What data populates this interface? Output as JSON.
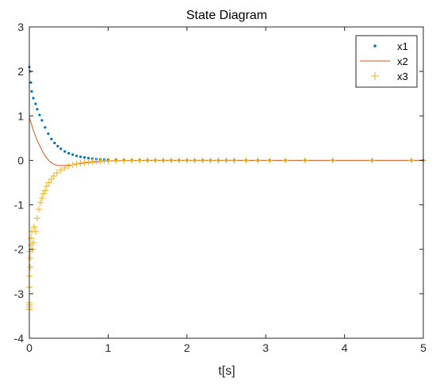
{
  "chart_data": {
    "type": "scatter",
    "title": "State Diagram",
    "xlabel": "t[s]",
    "ylabel": "",
    "xlim": [
      0,
      5
    ],
    "ylim": [
      -4,
      3
    ],
    "xticks": [
      0,
      1,
      2,
      3,
      4,
      5
    ],
    "yticks": [
      3,
      2,
      1,
      0,
      -1,
      -2,
      -3,
      -4
    ],
    "grid": false,
    "legend_position": "top-right",
    "series": [
      {
        "name": "x1",
        "marker": "dot",
        "color": "#0072BD",
        "x": [
          0,
          0.01,
          0.02,
          0.03,
          0.05,
          0.08,
          0.1,
          0.13,
          0.16,
          0.2,
          0.24,
          0.28,
          0.32,
          0.36,
          0.4,
          0.45,
          0.5,
          0.55,
          0.6,
          0.65,
          0.7,
          0.75,
          0.8,
          0.85,
          0.9,
          0.95,
          1.0,
          1.1,
          1.2,
          1.3,
          1.4,
          1.5,
          1.6,
          1.7,
          1.8,
          1.9,
          2.0,
          2.1,
          2.2,
          2.3,
          2.4,
          2.5,
          2.6,
          2.75,
          2.9,
          3.05,
          3.25,
          3.5,
          3.85,
          4.35,
          4.85,
          5.0
        ],
        "y": [
          2.1,
          2.0,
          1.75,
          1.55,
          1.4,
          1.27,
          1.15,
          1.02,
          0.9,
          0.74,
          0.6,
          0.48,
          0.39,
          0.32,
          0.26,
          0.2,
          0.16,
          0.13,
          0.1,
          0.08,
          0.065,
          0.05,
          0.04,
          0.03,
          0.025,
          0.02,
          0.015,
          0.01,
          0.006,
          0.004,
          0.003,
          0.002,
          0.001,
          0.001,
          0,
          0,
          0,
          0,
          0,
          0,
          0,
          0,
          0,
          0,
          0,
          0,
          0,
          0,
          0,
          0,
          0,
          0
        ]
      },
      {
        "name": "x2",
        "marker": "line",
        "color": "#D95319",
        "x": [
          0,
          0.05,
          0.1,
          0.15,
          0.2,
          0.25,
          0.3,
          0.35,
          0.4,
          0.5,
          0.6,
          0.7,
          0.8,
          0.9,
          1.0,
          1.2,
          1.5,
          2.0,
          3.0,
          4.0,
          5.0
        ],
        "y": [
          0.97,
          0.68,
          0.45,
          0.26,
          0.1,
          -0.01,
          -0.08,
          -0.11,
          -0.12,
          -0.11,
          -0.085,
          -0.06,
          -0.04,
          -0.025,
          -0.015,
          -0.005,
          0,
          0,
          0,
          0,
          0
        ]
      },
      {
        "name": "x3",
        "marker": "plus",
        "color": "#EDB120",
        "x": [
          0,
          0,
          0,
          0,
          0,
          0,
          0.01,
          0.01,
          0.01,
          0.02,
          0.02,
          0.03,
          0.04,
          0.05,
          0.06,
          0.08,
          0.1,
          0.12,
          0.14,
          0.16,
          0.18,
          0.2,
          0.22,
          0.25,
          0.28,
          0.31,
          0.35,
          0.4,
          0.45,
          0.5,
          0.55,
          0.6,
          0.65,
          0.7,
          0.75,
          0.8,
          0.85,
          0.9,
          0.95,
          1.0,
          1.1,
          1.2,
          1.3,
          1.4,
          1.5,
          1.6,
          1.7,
          1.8,
          1.9,
          2.0,
          2.1,
          2.2,
          2.3,
          2.4,
          2.5,
          2.6,
          2.75,
          2.9,
          3.05,
          3.25,
          3.5,
          3.85,
          4.35,
          4.85,
          5.0
        ],
        "y": [
          -3.35,
          -3.3,
          -3.25,
          -3.2,
          -2.85,
          -2.6,
          -2.4,
          -2.2,
          -2.05,
          -1.9,
          -1.75,
          -1.6,
          -2.0,
          -1.85,
          -1.5,
          -1.6,
          -1.3,
          -1.1,
          -0.95,
          -0.85,
          -0.75,
          -0.68,
          -0.58,
          -0.5,
          -0.42,
          -0.35,
          -0.28,
          -0.22,
          -0.17,
          -0.13,
          -0.1,
          -0.08,
          -0.06,
          -0.045,
          -0.035,
          -0.025,
          -0.02,
          -0.015,
          -0.01,
          -0.007,
          -0.004,
          -0.003,
          -0.002,
          -0.001,
          0,
          0,
          0,
          0,
          0,
          0,
          0,
          0,
          0,
          0,
          0,
          0,
          0,
          0,
          0,
          0,
          0,
          0,
          0,
          0,
          0
        ]
      }
    ]
  }
}
